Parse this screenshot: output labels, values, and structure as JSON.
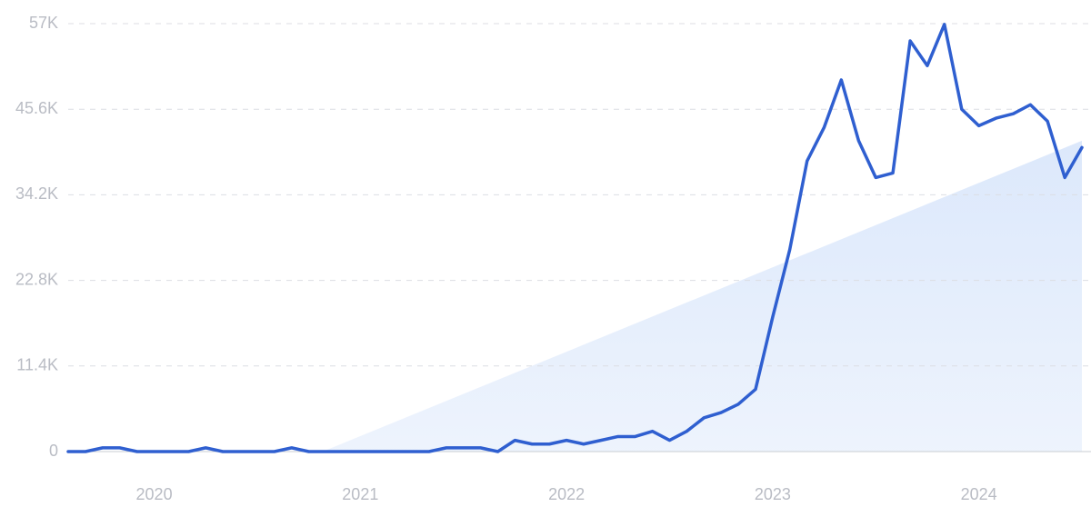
{
  "chart_data": {
    "type": "line",
    "x": [
      2019.583,
      2019.667,
      2019.75,
      2019.833,
      2019.917,
      2020,
      2020.083,
      2020.167,
      2020.25,
      2020.333,
      2020.417,
      2020.5,
      2020.583,
      2020.667,
      2020.75,
      2020.833,
      2020.917,
      2021,
      2021.083,
      2021.167,
      2021.25,
      2021.333,
      2021.417,
      2021.5,
      2021.583,
      2021.667,
      2021.75,
      2021.833,
      2021.917,
      2022,
      2022.083,
      2022.167,
      2022.25,
      2022.333,
      2022.417,
      2022.5,
      2022.583,
      2022.667,
      2022.75,
      2022.833,
      2022.917,
      2023,
      2023.083,
      2023.167,
      2023.25,
      2023.333,
      2023.417,
      2023.5,
      2023.583,
      2023.667,
      2023.75,
      2023.833,
      2023.917,
      2024,
      2024.083,
      2024.167,
      2024.25,
      2024.333,
      2024.417,
      2024.5
    ],
    "values": [
      0,
      0,
      500,
      500,
      0,
      0,
      0,
      0,
      500,
      0,
      0,
      0,
      0,
      500,
      0,
      0,
      0,
      0,
      0,
      0,
      0,
      0,
      500,
      500,
      500,
      0,
      1500,
      1000,
      1000,
      1500,
      1000,
      1500,
      2000,
      2000,
      2700,
      1500,
      2700,
      4500,
      5200,
      6300,
      8300,
      17900,
      26900,
      38700,
      43200,
      49500,
      41400,
      36500,
      37100,
      54700,
      51400,
      56900,
      45600,
      43400,
      44400,
      45000,
      46200,
      44000,
      36500,
      40500
    ],
    "color": "#2f5fd0",
    "trend": {
      "x": [
        2020.817,
        2024.5
      ],
      "values": [
        0,
        41400
      ],
      "color": "#dce8fb"
    },
    "xlim": [
      2019.583,
      2024.5
    ],
    "xticks": [
      2020,
      2021,
      2022,
      2023,
      2024
    ],
    "ylim": [
      0,
      57000
    ],
    "yticks": [
      0,
      {
        "value": 11400,
        "label": "11.4K"
      },
      {
        "value": 22800,
        "label": "22.8K"
      },
      {
        "value": 34200,
        "label": "34.2K"
      },
      {
        "value": 45600,
        "label": "45.6K"
      },
      {
        "value": 57000,
        "label": "57K"
      }
    ],
    "grid": true
  }
}
